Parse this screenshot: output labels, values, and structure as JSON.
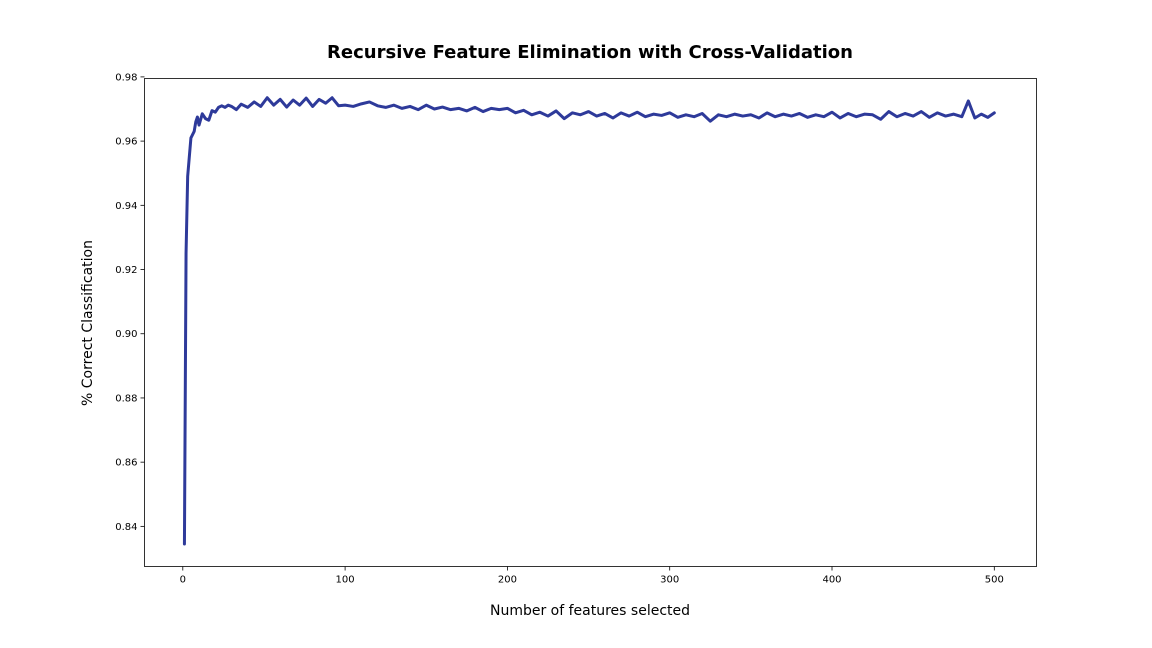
{
  "colors": {
    "line": "#2e3a9a",
    "axes": "#000000",
    "background": "#ffffff"
  },
  "chart_data": {
    "type": "line",
    "title": "Recursive Feature Elimination with Cross-Validation",
    "xlabel": "Number of features selected",
    "ylabel": "% Correct Classification",
    "xlim": [
      -23.6,
      526
    ],
    "ylim": [
      0.8275,
      0.9795
    ],
    "xticks": [
      0,
      100,
      200,
      300,
      400,
      500
    ],
    "xtick_labels": [
      "0",
      "100",
      "200",
      "300",
      "400",
      "500"
    ],
    "yticks": [
      0.84,
      0.86,
      0.88,
      0.9,
      0.92,
      0.94,
      0.96,
      0.98
    ],
    "ytick_labels": [
      "0.84",
      "0.86",
      "0.88",
      "0.90",
      "0.92",
      "0.94",
      "0.96",
      "0.98"
    ],
    "grid": false,
    "series": [
      {
        "x": [
          1,
          2,
          3,
          4,
          5,
          6,
          7,
          8,
          9,
          10,
          12,
          14,
          16,
          18,
          20,
          22,
          24,
          26,
          28,
          30,
          33,
          36,
          40,
          44,
          48,
          52,
          56,
          60,
          64,
          68,
          72,
          76,
          80,
          84,
          88,
          92,
          96,
          100,
          105,
          110,
          115,
          120,
          125,
          130,
          135,
          140,
          145,
          150,
          155,
          160,
          165,
          170,
          175,
          180,
          185,
          190,
          195,
          200,
          205,
          210,
          215,
          220,
          225,
          230,
          235,
          240,
          245,
          250,
          255,
          260,
          265,
          270,
          275,
          280,
          285,
          290,
          295,
          300,
          305,
          310,
          315,
          320,
          325,
          330,
          335,
          340,
          345,
          350,
          355,
          360,
          365,
          370,
          375,
          380,
          385,
          390,
          395,
          400,
          405,
          410,
          415,
          420,
          425,
          430,
          435,
          440,
          445,
          450,
          455,
          460,
          465,
          470,
          475,
          480,
          484,
          488,
          492,
          496,
          500
        ],
        "y": [
          0.8345,
          0.925,
          0.949,
          0.955,
          0.961,
          0.962,
          0.963,
          0.966,
          0.9675,
          0.965,
          0.9685,
          0.967,
          0.9665,
          0.9695,
          0.969,
          0.9705,
          0.971,
          0.9705,
          0.9712,
          0.9708,
          0.9698,
          0.9715,
          0.9705,
          0.9722,
          0.9708,
          0.9735,
          0.9712,
          0.973,
          0.9706,
          0.9728,
          0.9712,
          0.9734,
          0.9708,
          0.973,
          0.9718,
          0.9735,
          0.971,
          0.9712,
          0.9708,
          0.9716,
          0.9722,
          0.971,
          0.9705,
          0.9712,
          0.9702,
          0.9708,
          0.9698,
          0.9712,
          0.97,
          0.9706,
          0.9698,
          0.9702,
          0.9694,
          0.9705,
          0.9692,
          0.9702,
          0.9698,
          0.9702,
          0.9688,
          0.9696,
          0.9682,
          0.969,
          0.9678,
          0.9694,
          0.967,
          0.9688,
          0.9682,
          0.9692,
          0.9678,
          0.9686,
          0.9672,
          0.9688,
          0.9678,
          0.969,
          0.9676,
          0.9684,
          0.968,
          0.9688,
          0.9674,
          0.9682,
          0.9676,
          0.9686,
          0.9662,
          0.9682,
          0.9676,
          0.9684,
          0.9678,
          0.9682,
          0.9672,
          0.9688,
          0.9676,
          0.9684,
          0.9678,
          0.9686,
          0.9674,
          0.9682,
          0.9676,
          0.969,
          0.9672,
          0.9686,
          0.9676,
          0.9684,
          0.9682,
          0.9668,
          0.9692,
          0.9676,
          0.9686,
          0.9678,
          0.9692,
          0.9674,
          0.9688,
          0.9678,
          0.9684,
          0.9676,
          0.9725,
          0.9672,
          0.9684,
          0.9674,
          0.9688
        ]
      }
    ]
  }
}
